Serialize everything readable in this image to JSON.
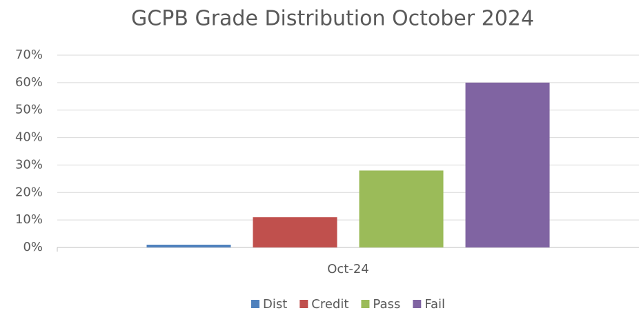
{
  "chart_data": {
    "type": "bar",
    "title": "GCPB Grade Distribution October 2024",
    "categories": [
      "Oct-24"
    ],
    "series": [
      {
        "name": "Dist",
        "color": "#4f81bd",
        "values": [
          1
        ]
      },
      {
        "name": "Credit",
        "color": "#c0504d",
        "values": [
          11
        ]
      },
      {
        "name": "Pass",
        "color": "#9bbb59",
        "values": [
          28
        ]
      },
      {
        "name": "Fail",
        "color": "#8064a2",
        "values": [
          60
        ]
      }
    ],
    "ylim": [
      0,
      70
    ],
    "yticks": [
      {
        "value": 0,
        "label": "0%"
      },
      {
        "value": 10,
        "label": "10%"
      },
      {
        "value": 20,
        "label": "20%"
      },
      {
        "value": 30,
        "label": "30%"
      },
      {
        "value": 40,
        "label": "40%"
      },
      {
        "value": 50,
        "label": "50%"
      },
      {
        "value": 60,
        "label": "60%"
      },
      {
        "value": 70,
        "label": "70%"
      }
    ],
    "grid": true,
    "legend": "bottom"
  }
}
